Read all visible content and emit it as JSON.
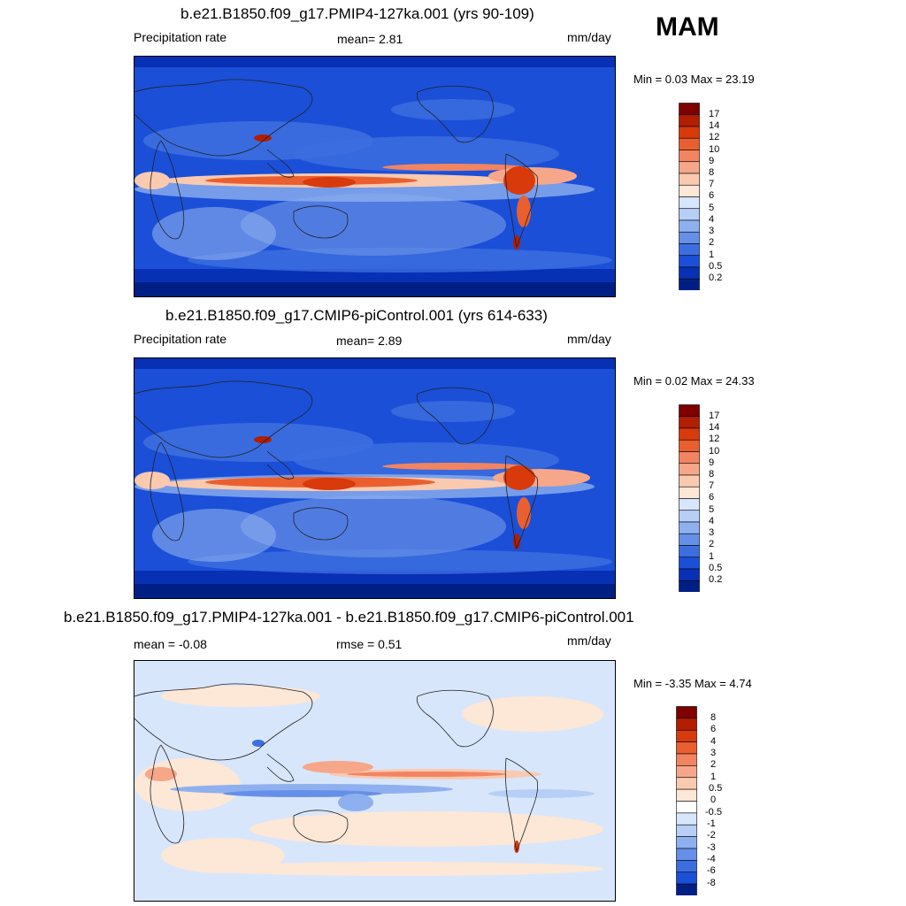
{
  "season": "MAM",
  "panels": [
    {
      "title": "b.e21.B1850.f09_g17.PMIP4-127ka.001 (yrs 90-109)",
      "left_label": "Precipitation rate",
      "center_label": "mean=   2.81",
      "units": "mm/day",
      "minmax": "Min =   0.03 Max =  23.19",
      "colorbar_labels": [
        "17",
        "14",
        "12",
        "10",
        "9",
        "8",
        "7",
        "6",
        "5",
        "4",
        "3",
        "2",
        "1",
        "0.5",
        "0.2"
      ],
      "colorbar_colors": [
        "#7f0000",
        "#b31d00",
        "#d83a0c",
        "#ea5f2f",
        "#f28462",
        "#f6a78a",
        "#f9c9b0",
        "#fde7d6",
        "#d8e6fb",
        "#b7cff6",
        "#8fb0ef",
        "#6690e7",
        "#3d6ee0",
        "#1b4fd8",
        "#0830b4",
        "#001f85"
      ]
    },
    {
      "title": "b.e21.B1850.f09_g17.CMIP6-piControl.001 (yrs 614-633)",
      "left_label": "Precipitation rate",
      "center_label": "mean=   2.89",
      "units": "mm/day",
      "minmax": "Min =   0.02 Max =  24.33",
      "colorbar_labels": [
        "17",
        "14",
        "12",
        "10",
        "9",
        "8",
        "7",
        "6",
        "5",
        "4",
        "3",
        "2",
        "1",
        "0.5",
        "0.2"
      ],
      "colorbar_colors": [
        "#7f0000",
        "#b31d00",
        "#d83a0c",
        "#ea5f2f",
        "#f28462",
        "#f6a78a",
        "#f9c9b0",
        "#fde7d6",
        "#d8e6fb",
        "#b7cff6",
        "#8fb0ef",
        "#6690e7",
        "#3d6ee0",
        "#1b4fd8",
        "#0830b4",
        "#001f85"
      ]
    },
    {
      "title": "b.e21.B1850.f09_g17.PMIP4-127ka.001 - b.e21.B1850.f09_g17.CMIP6-piControl.001",
      "left_label": "mean =  -0.08",
      "center_label": "rmse =   0.51",
      "units": "mm/day",
      "minmax": "Min =  -3.35 Max =   4.74",
      "colorbar_labels": [
        "8",
        "6",
        "4",
        "3",
        "2",
        "1",
        "0.5",
        "0",
        "-0.5",
        "-1",
        "-2",
        "-3",
        "-4",
        "-6",
        "-8"
      ],
      "colorbar_colors": [
        "#7f0000",
        "#b31d00",
        "#d83a0c",
        "#ea5f2f",
        "#f28462",
        "#f6a78a",
        "#f9c9b0",
        "#fde7d6",
        "#ffffff",
        "#d8e6fb",
        "#b7cff6",
        "#8fb0ef",
        "#6690e7",
        "#3d6ee0",
        "#1b4fd8",
        "#001f85"
      ]
    }
  ]
}
